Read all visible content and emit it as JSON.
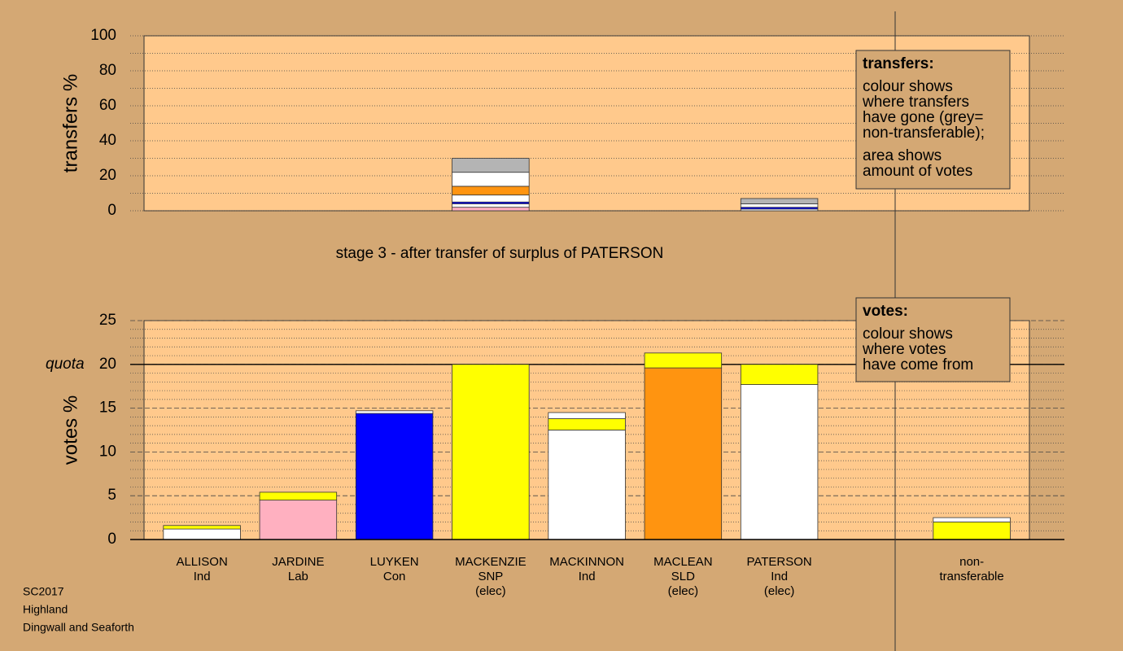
{
  "chart_data": [
    {
      "type": "bar",
      "stacked": true,
      "ylabel": "transfers %",
      "ylim": [
        0,
        100
      ],
      "yticks": [
        0,
        20,
        40,
        60,
        80,
        100
      ],
      "grid": true,
      "note_title": "transfers:",
      "note_lines": [
        "colour shows",
        "where transfers",
        "have gone (grey=",
        "non-transferable);",
        "area shows",
        "amount of votes"
      ],
      "series": [
        {
          "color": "#ffb0c0",
          "values": [
            null,
            null,
            null,
            2,
            null,
            null,
            null,
            null,
            null
          ]
        },
        {
          "color": "#ffffff",
          "values": [
            null,
            null,
            null,
            2,
            null,
            null,
            1,
            null,
            null
          ]
        },
        {
          "color": "#0000ff",
          "values": [
            null,
            null,
            null,
            1,
            null,
            null,
            1,
            null,
            null
          ]
        },
        {
          "color": "#ffffff",
          "values": [
            null,
            null,
            null,
            4,
            null,
            null,
            2,
            null,
            null
          ]
        },
        {
          "color": "#ff9410",
          "values": [
            null,
            null,
            null,
            5,
            null,
            null,
            null,
            null,
            null
          ]
        },
        {
          "color": "#ffffff",
          "values": [
            null,
            null,
            null,
            8,
            null,
            null,
            null,
            null,
            null
          ]
        },
        {
          "color": "#b4b4b4",
          "values": [
            null,
            null,
            null,
            8,
            null,
            null,
            3,
            null,
            null
          ]
        }
      ]
    },
    {
      "type": "bar",
      "stacked": true,
      "title": "stage 3 - after transfer of surplus of PATERSON",
      "ylabel": "votes %",
      "ylim": [
        0,
        25
      ],
      "yticks": [
        0,
        5,
        10,
        15,
        20,
        25
      ],
      "grid": true,
      "quota": {
        "value": 20,
        "label": "quota"
      },
      "note_title": "votes:",
      "note_lines": [
        "colour shows",
        "where votes",
        "have come from"
      ],
      "categories": [
        [
          "ALLISON",
          "Ind"
        ],
        [
          "JARDINE",
          "Lab"
        ],
        [
          "LUYKEN",
          "Con"
        ],
        [
          "MACKENZIE",
          "SNP",
          "(elec)"
        ],
        [
          "MACKINNON",
          "Ind"
        ],
        [
          "MACLEAN",
          "SLD",
          "(elec)"
        ],
        [
          "PATERSON",
          "Ind",
          "(elec)"
        ],
        null,
        [
          "non-",
          "transferable"
        ]
      ],
      "series": [
        {
          "color": "#ffb0c0",
          "values": [
            null,
            4.5,
            null,
            null,
            null,
            null,
            null,
            null,
            null
          ]
        },
        {
          "color": "#0000ff",
          "values": [
            null,
            null,
            14.4,
            null,
            null,
            null,
            null,
            null,
            null
          ]
        },
        {
          "color": "#ff9410",
          "values": [
            null,
            null,
            null,
            null,
            null,
            19.6,
            null,
            null,
            null
          ]
        },
        {
          "color": "#ffffff",
          "values": [
            1.2,
            null,
            null,
            null,
            12.5,
            null,
            17.7,
            null,
            null
          ]
        },
        {
          "color": "#ffff00",
          "values": [
            0.4,
            0.9,
            null,
            20,
            1.3,
            1.7,
            2.3,
            null,
            2.0
          ]
        },
        {
          "color": "#ffffff",
          "values": [
            null,
            null,
            0.3,
            null,
            0.7,
            null,
            null,
            null,
            0.5
          ]
        }
      ]
    }
  ],
  "footer": [
    "SC2017",
    "Highland",
    "Dingwall and Seaforth"
  ]
}
